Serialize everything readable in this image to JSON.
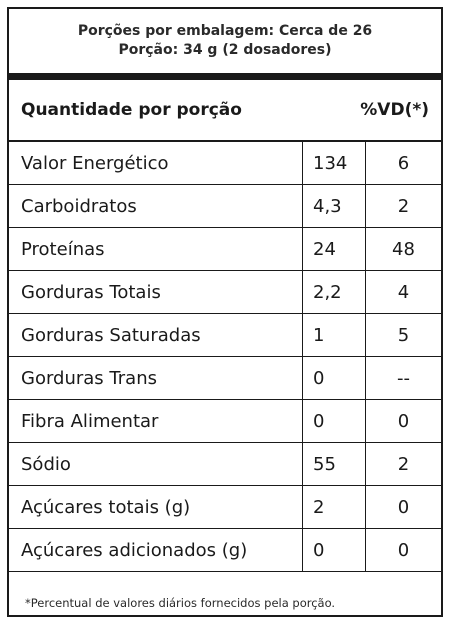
{
  "header": {
    "line1": "Porções por embalagem: Cerca de 26",
    "line2": "Porção: 34 g (2 dosadores)"
  },
  "columns": {
    "quantity_label": "Quantidade por porção",
    "vd_label": "%VD(*)"
  },
  "rows": [
    {
      "name": "Valor Energético",
      "qty": "134",
      "vd": "6"
    },
    {
      "name": "Carboidratos",
      "qty": "4,3",
      "vd": "2"
    },
    {
      "name": "Proteínas",
      "qty": "24",
      "vd": "48"
    },
    {
      "name": "Gorduras Totais",
      "qty": "2,2",
      "vd": "4"
    },
    {
      "name": "Gorduras Saturadas",
      "qty": "1",
      "vd": "5"
    },
    {
      "name": "Gorduras Trans",
      "qty": "0",
      "vd": "--"
    },
    {
      "name": "Fibra Alimentar",
      "qty": "0",
      "vd": "0"
    },
    {
      "name": "Sódio",
      "qty": "55",
      "vd": "2"
    },
    {
      "name": "Açúcares totais (g)",
      "qty": "2",
      "vd": "0"
    },
    {
      "name": "Açúcares adicionados (g)",
      "qty": "0",
      "vd": "0"
    }
  ],
  "footnote": "*Percentual de valores diários fornecidos pela porção."
}
